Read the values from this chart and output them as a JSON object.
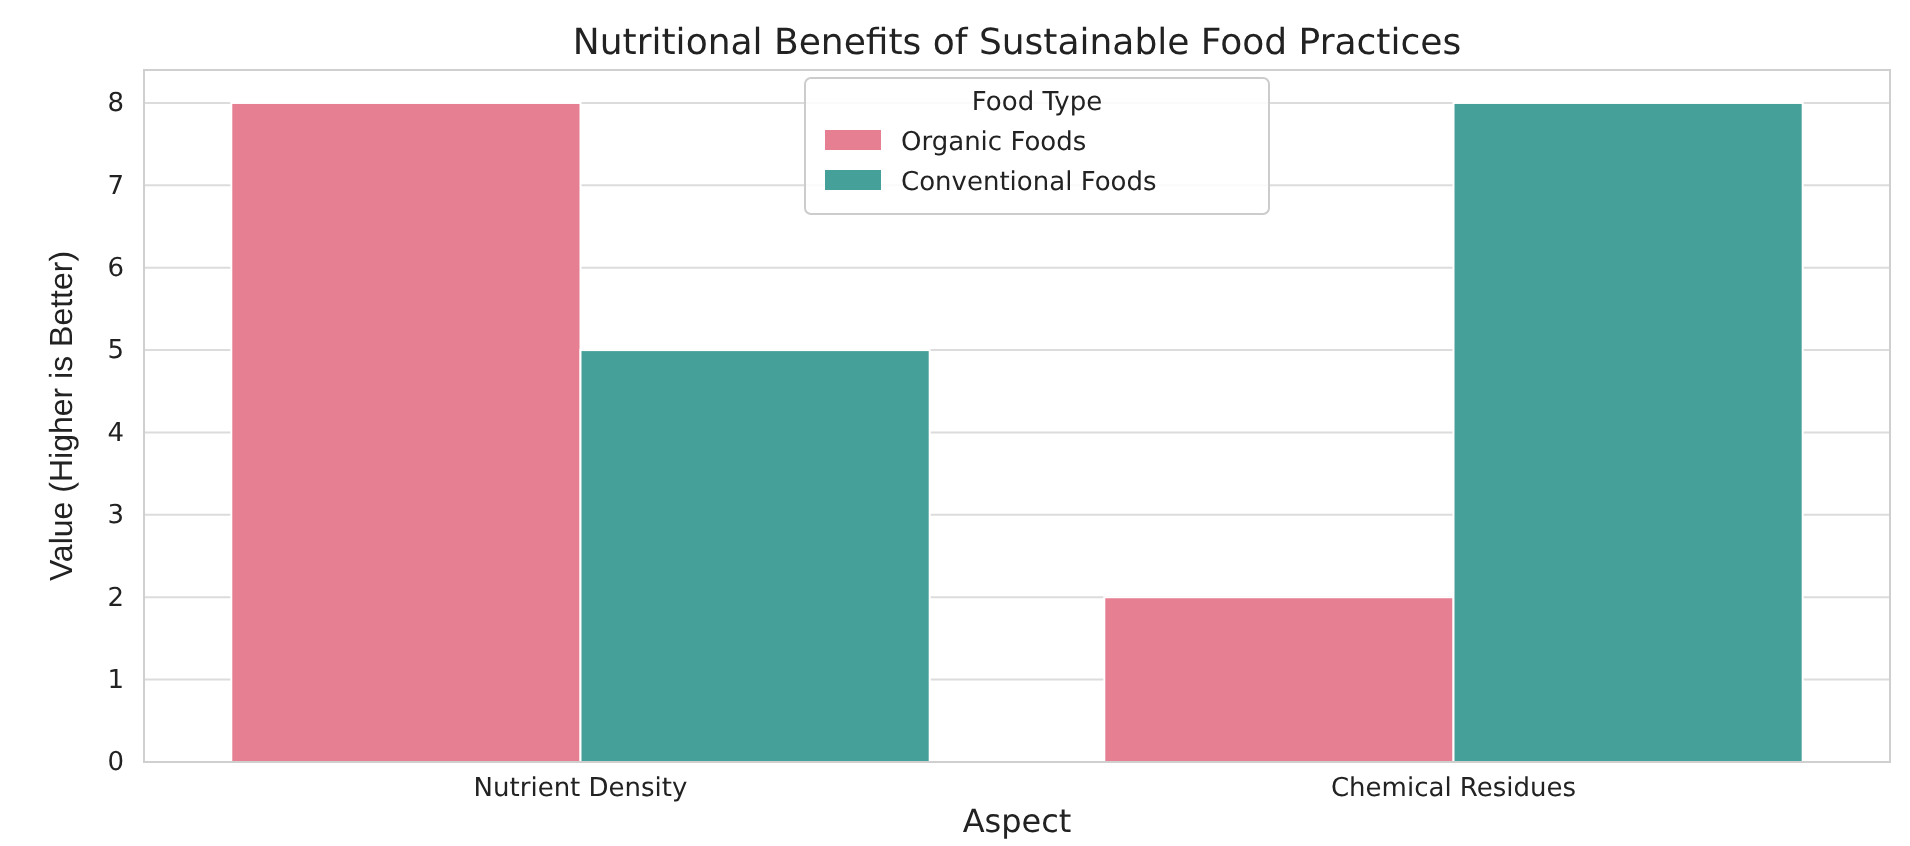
{
  "chart_data": {
    "type": "bar",
    "title": "Nutritional Benefits of Sustainable Food Practices",
    "xlabel": "Aspect",
    "ylabel": "Value (Higher is Better)",
    "legend_title": "Food Type",
    "categories": [
      "Nutrient Density",
      "Chemical Residues"
    ],
    "series": [
      {
        "name": "Organic Foods",
        "color": "#e67f92",
        "values": [
          8,
          2
        ]
      },
      {
        "name": "Conventional Foods",
        "color": "#46a09a",
        "values": [
          5,
          8
        ]
      }
    ],
    "ylim": [
      0,
      8.4
    ],
    "yticks": [
      0,
      1,
      2,
      3,
      4,
      5,
      6,
      7,
      8
    ],
    "grid": "y",
    "legend": "top"
  }
}
